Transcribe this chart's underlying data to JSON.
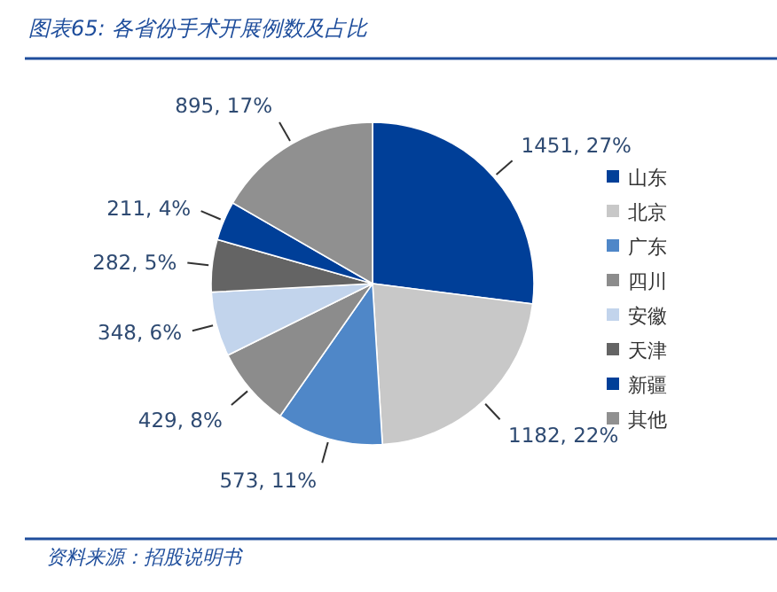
{
  "chart_data": {
    "type": "pie",
    "title": "图表65: 各省份手术开展例数及占比",
    "categories": [
      "山东",
      "北京",
      "广东",
      "四川",
      "安徽",
      "天津",
      "新疆",
      "其他"
    ],
    "values": [
      1451,
      1182,
      573,
      429,
      348,
      282,
      211,
      895
    ],
    "value_labels": [
      "1451, 27%",
      "1182, 22%",
      "573, 11%",
      "429, 8%",
      "348, 6%",
      "282, 5%",
      "211, 4%",
      "895, 17%"
    ],
    "colors": [
      "#003f98",
      "#c8c8c8",
      "#4f87c8",
      "#8c8c8c",
      "#c2d4ec",
      "#646464",
      "#003f98",
      "#909090"
    ],
    "legend": "right",
    "annotations": [
      "资料来源：招股说明书"
    ]
  }
}
